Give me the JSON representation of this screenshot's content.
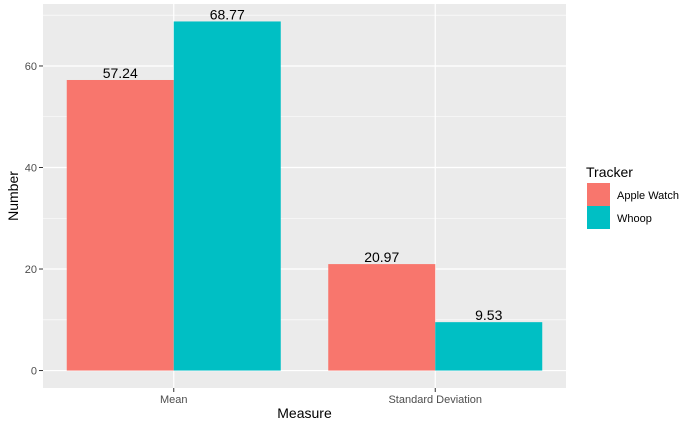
{
  "chart_data": {
    "type": "bar",
    "categories": [
      "Mean",
      "Standard Deviation"
    ],
    "series": [
      {
        "name": "Apple Watch",
        "values": [
          57.24,
          20.97
        ],
        "labels": [
          "57.24",
          "20.97"
        ],
        "color": "#F8766D"
      },
      {
        "name": "Whoop",
        "values": [
          68.77,
          9.53
        ],
        "labels": [
          "68.77",
          "9.53"
        ],
        "color": "#00BFC4"
      }
    ],
    "xlabel": "Measure",
    "ylabel": "Number",
    "yticks": [
      0,
      20,
      40,
      60
    ],
    "ytick_labels": [
      "0",
      "20",
      "40",
      "60"
    ],
    "ylim": [
      -3.44,
      72.21
    ],
    "legend_title": "Tracker",
    "legend_position": "right",
    "grid": true,
    "panel_color": "#EBEBEB",
    "grid_color": "#FFFFFF"
  }
}
